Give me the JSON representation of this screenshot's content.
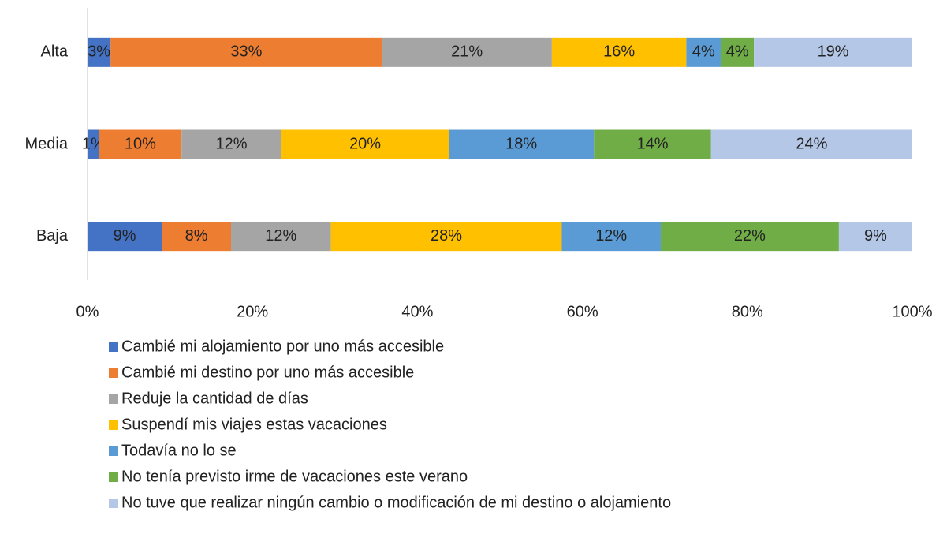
{
  "chart_data": {
    "type": "stacked_barh",
    "categories": [
      "Alta",
      "Media",
      "Baja"
    ],
    "series": [
      {
        "name": "Cambié mi alojamiento por uno más accesible",
        "color": "#4472c4",
        "values": [
          2.8,
          1.4,
          9.0
        ],
        "value_labels": [
          "3%",
          "1%",
          "9%"
        ]
      },
      {
        "name": "Cambié mi destino por uno más accesible",
        "color": "#ed7d31",
        "values": [
          32.9,
          10.0,
          8.4
        ],
        "value_labels": [
          "33%",
          "10%",
          "8%"
        ]
      },
      {
        "name": "Reduje la cantidad de días",
        "color": "#a5a5a5",
        "values": [
          20.6,
          12.1,
          12.1
        ],
        "value_labels": [
          "21%",
          "12%",
          "12%"
        ]
      },
      {
        "name": "Suspendí mis viajes estas vacaciones",
        "color": "#ffc000",
        "values": [
          16.3,
          20.3,
          28.0
        ],
        "value_labels": [
          "16%",
          "20%",
          "28%"
        ]
      },
      {
        "name": "Todavía no lo se",
        "color": "#5b9bd5",
        "values": [
          4.2,
          17.6,
          12.0
        ],
        "value_labels": [
          "4%",
          "18%",
          "12%"
        ]
      },
      {
        "name": "No tenía previsto irme de vacaciones este verano",
        "color": "#70ad47",
        "values": [
          4.0,
          14.2,
          21.6
        ],
        "value_labels": [
          "4%",
          "14%",
          "22%"
        ]
      },
      {
        "name": "No tuve que realizar ningún cambio o modificación de mi destino o alojamiento",
        "color": "#b4c7e7",
        "values": [
          19.2,
          24.4,
          8.9
        ],
        "value_labels": [
          "19%",
          "24%",
          "9%"
        ]
      }
    ],
    "xlim": [
      0,
      100
    ],
    "xticks": [
      {
        "value": 0,
        "label": "0%"
      },
      {
        "value": 20,
        "label": "20%"
      },
      {
        "value": 40,
        "label": "40%"
      },
      {
        "value": 60,
        "label": "60%"
      },
      {
        "value": 80,
        "label": "80%"
      },
      {
        "value": 100,
        "label": "100%"
      }
    ],
    "grid": false,
    "legend": "bottom"
  }
}
